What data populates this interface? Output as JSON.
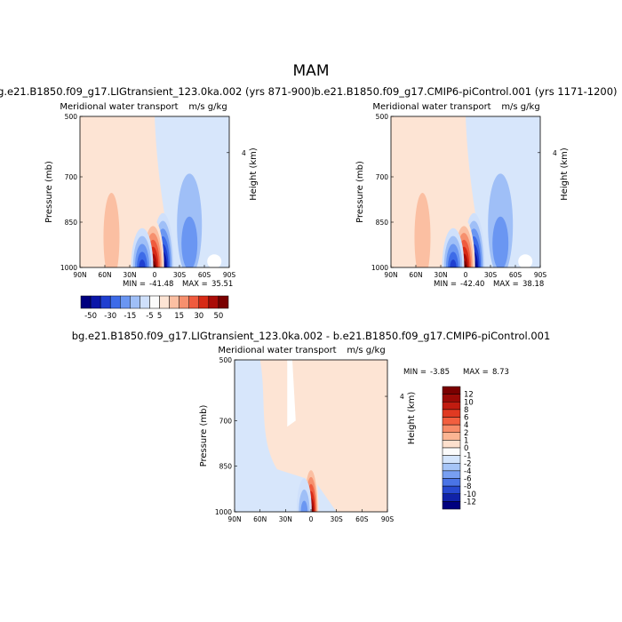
{
  "figure": {
    "title": "MAM"
  },
  "chart_data": [
    {
      "type": "heatmap",
      "panel": "left",
      "case_title": "bg.e21.B1850.f09_g17.LIGtransient_123.0ka.002 (yrs 871-900)",
      "variable": "Meridional water transport",
      "units": "m/s g/kg",
      "xlabel": "",
      "ylabel": "Pressure (mb)",
      "right_label": "Height (km)",
      "x_ticks": [
        "90N",
        "60N",
        "30N",
        "0",
        "30S",
        "60S",
        "90S"
      ],
      "y_ticks": [
        "500",
        "700",
        "850",
        "1000"
      ],
      "right_ticks": [
        "4"
      ],
      "xlim": [
        90,
        -90
      ],
      "ylim": [
        1000,
        500
      ],
      "stats": {
        "min_label": "MIN =",
        "min": "-41.48",
        "max_label": "MAX =",
        "max": "35.51"
      },
      "features": [
        {
          "lat": -10,
          "p_top": 820,
          "sign": "neg",
          "max_level": 50
        },
        {
          "lat": 2,
          "p_top": 840,
          "sign": "pos",
          "max_level": 50
        },
        {
          "lat": 15,
          "p_top": 870,
          "sign": "neg",
          "max_level": 30
        }
      ]
    },
    {
      "type": "heatmap",
      "panel": "right",
      "case_title": "b.e21.B1850.f09_g17.CMIP6-piControl.001 (yrs 1171-1200)",
      "variable": "Meridional water transport",
      "units": "m/s g/kg",
      "xlabel": "",
      "ylabel": "Pressure (mb)",
      "right_label": "Height (km)",
      "x_ticks": [
        "90N",
        "60N",
        "30N",
        "0",
        "30S",
        "60S",
        "90S"
      ],
      "y_ticks": [
        "500",
        "700",
        "850",
        "1000"
      ],
      "right_ticks": [
        "4"
      ],
      "xlim": [
        90,
        -90
      ],
      "ylim": [
        1000,
        500
      ],
      "stats": {
        "min_label": "MIN =",
        "min": "-42.40",
        "max_label": "MAX =",
        "max": "38.18"
      },
      "features": [
        {
          "lat": -10,
          "p_top": 820,
          "sign": "neg",
          "max_level": 50
        },
        {
          "lat": 2,
          "p_top": 840,
          "sign": "pos",
          "max_level": 50
        },
        {
          "lat": 15,
          "p_top": 870,
          "sign": "neg",
          "max_level": 30
        }
      ]
    },
    {
      "type": "heatmap",
      "panel": "difference",
      "case_title": "bg.e21.B1850.f09_g17.LIGtransient_123.0ka.002 - b.e21.B1850.f09_g17.CMIP6-piControl.001",
      "variable": "Meridional water transport",
      "units": "m/s g/kg",
      "xlabel": "",
      "ylabel": "Pressure (mb)",
      "right_label": "Height (km)",
      "x_ticks": [
        "90N",
        "60N",
        "30N",
        "0",
        "30S",
        "60S",
        "90S"
      ],
      "y_ticks": [
        "500",
        "700",
        "850",
        "1000"
      ],
      "right_ticks": [
        "4"
      ],
      "xlim": [
        90,
        -90
      ],
      "ylim": [
        1000,
        500
      ],
      "stats": {
        "min_label": "MIN =",
        "min": "-3.85",
        "max_label": "MAX =",
        "max": "8.73"
      },
      "features": [
        {
          "lat": 0,
          "p_top": 840,
          "sign": "pos",
          "max_level": 12
        },
        {
          "lat": 8,
          "p_top": 890,
          "sign": "neg",
          "max_level": 2
        }
      ]
    }
  ],
  "colorbars": [
    {
      "orientation": "horizontal",
      "labels": [
        "-50",
        "-30",
        "-15",
        "-5",
        "5",
        "15",
        "30",
        "50"
      ],
      "colors": [
        "#00007f",
        "#0a16a8",
        "#1f3fd0",
        "#3d6be8",
        "#6a96f2",
        "#9fbff7",
        "#cfe0fb",
        "#fbfbfb",
        "#fde4d4",
        "#fbbfa2",
        "#f6906e",
        "#ef5b3e",
        "#d72a16",
        "#aa0c08",
        "#7a0000"
      ]
    },
    {
      "orientation": "vertical",
      "labels": [
        "12",
        "10",
        "8",
        "6",
        "4",
        "2",
        "1",
        "0",
        "-1",
        "-2",
        "-4",
        "-6",
        "-8",
        "-10",
        "-12"
      ],
      "colors": [
        "#7a0000",
        "#9a0a06",
        "#c11c10",
        "#e03a22",
        "#f25f3f",
        "#f78b68",
        "#fbb593",
        "#fde0cd",
        "#fbfbfb",
        "#d3e4fb",
        "#a6c5f7",
        "#789ff1",
        "#4a74e6",
        "#2749d0",
        "#1022a8",
        "#00007f"
      ]
    }
  ]
}
